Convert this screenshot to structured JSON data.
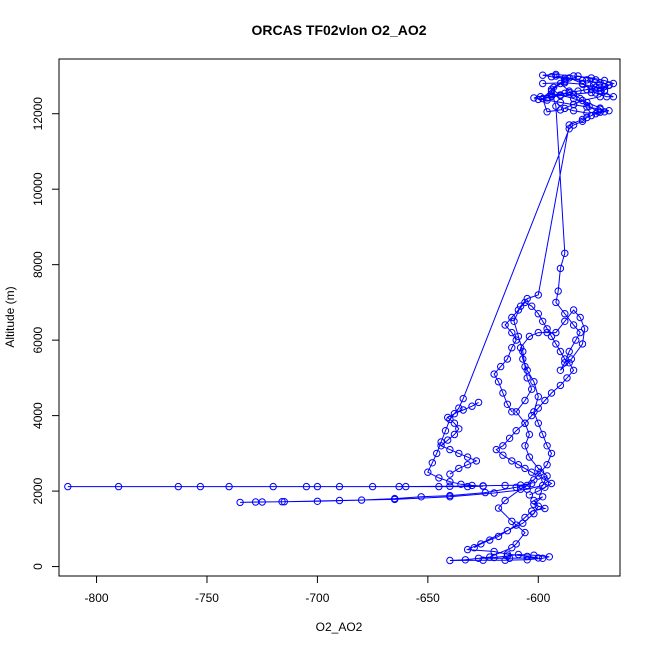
{
  "chart_data": {
    "type": "scatter",
    "title": "ORCAS TF02vlon O2_AO2",
    "xlabel": "O2_AO2",
    "ylabel": "Altitude (m)",
    "xlim": [
      -817,
      -563
    ],
    "ylim": [
      -250,
      13450
    ],
    "xticks": [
      -800,
      -750,
      -700,
      -650,
      -600
    ],
    "yticks": [
      0,
      2000,
      4000,
      6000,
      8000,
      10000,
      12000
    ],
    "grid": false,
    "legend": "none",
    "marker": "open-circle",
    "connected": true,
    "color": "#0000ff",
    "series": [
      {
        "values": [
          [
            -578,
            12900
          ],
          [
            -575,
            12750
          ],
          [
            -570,
            12600
          ],
          [
            -572,
            12450
          ],
          [
            -580,
            12350
          ],
          [
            -584,
            12250
          ],
          [
            -590,
            12100
          ],
          [
            -596,
            12050
          ],
          [
            -598,
            12400
          ],
          [
            -593,
            12700
          ],
          [
            -588,
            12900
          ],
          [
            -592,
            13000
          ],
          [
            -586,
            12950
          ],
          [
            -580,
            12800
          ],
          [
            -574,
            12550
          ],
          [
            -569,
            12450
          ],
          [
            -566,
            12450
          ],
          [
            -572,
            12600
          ],
          [
            -568,
            12750
          ],
          [
            -574,
            12900
          ],
          [
            -582,
            13000
          ],
          [
            -588,
            12850
          ],
          [
            -594,
            12650
          ],
          [
            -590,
            12500
          ],
          [
            -584,
            12400
          ],
          [
            -578,
            12300
          ],
          [
            -572,
            12150
          ],
          [
            -570,
            12050
          ],
          [
            -574,
            12000
          ],
          [
            -578,
            11900
          ],
          [
            -580,
            11800
          ],
          [
            -584,
            11700
          ],
          [
            -586,
            11600
          ],
          [
            -634,
            4450
          ],
          [
            -636,
            4200
          ],
          [
            -640,
            3900
          ],
          [
            -642,
            3600
          ],
          [
            -644,
            3300
          ],
          [
            -646,
            3000
          ],
          [
            -648,
            2750
          ],
          [
            -650,
            2500
          ],
          [
            -645,
            2350
          ],
          [
            -640,
            2250
          ],
          [
            -635,
            2180
          ],
          [
            -630,
            2150
          ],
          [
            -625,
            2130
          ],
          [
            -632,
            2120
          ],
          [
            -645,
            2120
          ],
          [
            -660,
            2120
          ],
          [
            -675,
            2120
          ],
          [
            -690,
            2120
          ],
          [
            -705,
            2120
          ],
          [
            -720,
            2120
          ],
          [
            -740,
            2120
          ],
          [
            -763,
            2120
          ],
          [
            -790,
            2120
          ],
          [
            -813,
            2120
          ],
          [
            -753,
            2120
          ],
          [
            -700,
            2120
          ],
          [
            -663,
            2120
          ],
          [
            -640,
            2130
          ],
          [
            -625,
            2140
          ],
          [
            -615,
            2150
          ],
          [
            -608,
            2160
          ],
          [
            -603,
            2200
          ],
          [
            -610,
            2100
          ],
          [
            -624,
            1960
          ],
          [
            -640,
            1880
          ],
          [
            -653,
            1850
          ],
          [
            -665,
            1800
          ],
          [
            -680,
            1760
          ],
          [
            -700,
            1730
          ],
          [
            -716,
            1720
          ],
          [
            -725,
            1710
          ],
          [
            -735,
            1700
          ],
          [
            -728,
            1710
          ],
          [
            -715,
            1720
          ],
          [
            -690,
            1750
          ],
          [
            -665,
            1780
          ],
          [
            -640,
            1850
          ],
          [
            -620,
            1950
          ],
          [
            -605,
            2050
          ],
          [
            -598,
            2150
          ],
          [
            -596,
            2400
          ],
          [
            -600,
            2600
          ],
          [
            -604,
            2900
          ],
          [
            -606,
            3200
          ],
          [
            -604,
            3500
          ],
          [
            -606,
            3800
          ],
          [
            -610,
            4100
          ],
          [
            -606,
            4400
          ],
          [
            -603,
            4700
          ],
          [
            -605,
            5000
          ],
          [
            -606,
            5300
          ],
          [
            -607,
            5700
          ],
          [
            -609,
            6100
          ],
          [
            -611,
            6500
          ],
          [
            -608,
            6900
          ],
          [
            -605,
            7100
          ],
          [
            -600,
            7200
          ],
          [
            -586,
            11700
          ],
          [
            -580,
            11850
          ],
          [
            -576,
            11950
          ],
          [
            -573,
            12050
          ],
          [
            -577,
            12200
          ],
          [
            -581,
            12400
          ],
          [
            -586,
            12600
          ],
          [
            -590,
            12800
          ],
          [
            -594,
            12600
          ],
          [
            -592,
            12200
          ],
          [
            -588,
            8300
          ],
          [
            -590,
            7900
          ],
          [
            -591,
            7300
          ],
          [
            -592,
            7000
          ],
          [
            -588,
            6700
          ],
          [
            -584,
            6400
          ],
          [
            -581,
            6200
          ],
          [
            -583,
            6000
          ],
          [
            -586,
            5700
          ],
          [
            -588,
            5400
          ],
          [
            -590,
            5200
          ],
          [
            -585,
            5500
          ],
          [
            -580,
            5900
          ],
          [
            -579,
            6300
          ],
          [
            -581,
            6600
          ],
          [
            -584,
            6800
          ],
          [
            -588,
            6500
          ],
          [
            -592,
            6200
          ],
          [
            -596,
            6200
          ],
          [
            -600,
            6200
          ],
          [
            -604,
            6100
          ],
          [
            -608,
            5800
          ],
          [
            -607,
            5500
          ],
          [
            -605,
            5200
          ],
          [
            -602,
            4900
          ],
          [
            -600,
            4500
          ],
          [
            -602,
            4100
          ],
          [
            -600,
            3800
          ],
          [
            -598,
            3500
          ],
          [
            -596,
            3200
          ],
          [
            -594,
            3000
          ],
          [
            -596,
            2700
          ],
          [
            -599,
            2500
          ],
          [
            -602,
            2300
          ],
          [
            -605,
            2150
          ],
          [
            -608,
            2050
          ],
          [
            -615,
            1750
          ],
          [
            -618,
            1550
          ],
          [
            -612,
            1200
          ],
          [
            -606,
            900
          ],
          [
            -610,
            600
          ],
          [
            -612,
            500
          ],
          [
            -622,
            250
          ],
          [
            -633,
            180
          ],
          [
            -640,
            160
          ],
          [
            -625,
            170
          ],
          [
            -615,
            170
          ],
          [
            -605,
            180
          ],
          [
            -598,
            220
          ],
          [
            -595,
            260
          ],
          [
            -602,
            300
          ],
          [
            -609,
            320
          ],
          [
            -614,
            280
          ],
          [
            -620,
            240
          ],
          [
            -627,
            220
          ],
          [
            -613,
            220
          ],
          [
            -600,
            230
          ],
          [
            -605,
            270
          ],
          [
            -614,
            330
          ],
          [
            -620,
            400
          ],
          [
            -632,
            450
          ],
          [
            -607,
            1150
          ],
          [
            -602,
            1400
          ],
          [
            -600,
            1600
          ],
          [
            -602,
            1750
          ],
          [
            -598,
            1850
          ],
          [
            -602,
            1650
          ],
          [
            -597,
            1540
          ],
          [
            -603,
            1470
          ],
          [
            -606,
            1300
          ],
          [
            -610,
            1100
          ],
          [
            -614,
            950
          ],
          [
            -618,
            800
          ],
          [
            -622,
            700
          ],
          [
            -626,
            600
          ],
          [
            -629,
            500
          ]
        ]
      },
      {
        "values": [
          [
            -598,
            12800
          ],
          [
            -588,
            12820
          ],
          [
            -580,
            12780
          ],
          [
            -574,
            12700
          ],
          [
            -570,
            12620
          ],
          [
            -576,
            12560
          ],
          [
            -584,
            12520
          ],
          [
            -590,
            12480
          ],
          [
            -596,
            12420
          ],
          [
            -600,
            12380
          ],
          [
            -594,
            12460
          ],
          [
            -586,
            12560
          ],
          [
            -578,
            12640
          ],
          [
            -572,
            12700
          ],
          [
            -568,
            12760
          ],
          [
            -572,
            12820
          ],
          [
            -580,
            12880
          ],
          [
            -588,
            12940
          ],
          [
            -594,
            12980
          ],
          [
            -598,
            13020
          ],
          [
            -592,
            13040
          ],
          [
            -584,
            13000
          ],
          [
            -576,
            12950
          ],
          [
            -570,
            12880
          ],
          [
            -566,
            12800
          ],
          [
            -570,
            12720
          ],
          [
            -576,
            12660
          ],
          [
            -582,
            12600
          ],
          [
            -588,
            12540
          ],
          [
            -594,
            12500
          ],
          [
            -599,
            12450
          ],
          [
            -602,
            12420
          ],
          [
            -596,
            12360
          ],
          [
            -590,
            12300
          ],
          [
            -584,
            12240
          ],
          [
            -578,
            12180
          ],
          [
            -572,
            12120
          ],
          [
            -568,
            12080
          ],
          [
            -572,
            12040
          ],
          [
            -578,
            12020
          ],
          [
            -584,
            12080
          ],
          [
            -588,
            12140
          ]
        ]
      },
      {
        "values": [
          [
            -612,
            4100
          ],
          [
            -614,
            4300
          ],
          [
            -616,
            4600
          ],
          [
            -618,
            4900
          ],
          [
            -620,
            5100
          ],
          [
            -617,
            5300
          ],
          [
            -614,
            5500
          ],
          [
            -612,
            5800
          ],
          [
            -610,
            6000
          ],
          [
            -612,
            6200
          ],
          [
            -615,
            6400
          ],
          [
            -612,
            6600
          ],
          [
            -609,
            6800
          ],
          [
            -606,
            7000
          ],
          [
            -603,
            6900
          ],
          [
            -600,
            6700
          ],
          [
            -598,
            6500
          ],
          [
            -596,
            6300
          ],
          [
            -594,
            6100
          ],
          [
            -592,
            5900
          ],
          [
            -590,
            5700
          ],
          [
            -588,
            5500
          ],
          [
            -586,
            5400
          ],
          [
            -584,
            5200
          ],
          [
            -587,
            5000
          ],
          [
            -590,
            4800
          ],
          [
            -594,
            4600
          ],
          [
            -597,
            4400
          ],
          [
            -600,
            4200
          ],
          [
            -603,
            4000
          ],
          [
            -606,
            3800
          ],
          [
            -610,
            3600
          ],
          [
            -613,
            3400
          ],
          [
            -616,
            3200
          ],
          [
            -619,
            3100
          ],
          [
            -616,
            2950
          ],
          [
            -612,
            2800
          ],
          [
            -609,
            2700
          ],
          [
            -606,
            2600
          ],
          [
            -603,
            2500
          ],
          [
            -600,
            2400
          ],
          [
            -597,
            2300
          ],
          [
            -594,
            2200
          ],
          [
            -597,
            2100
          ],
          [
            -600,
            2000
          ],
          [
            -604,
            1900
          ]
        ]
      },
      {
        "values": [
          [
            -640,
            2450
          ],
          [
            -636,
            2600
          ],
          [
            -632,
            2700
          ],
          [
            -628,
            2800
          ],
          [
            -632,
            2900
          ],
          [
            -636,
            3000
          ],
          [
            -640,
            3100
          ],
          [
            -644,
            3200
          ],
          [
            -641,
            3350
          ],
          [
            -638,
            3500
          ],
          [
            -636,
            3650
          ],
          [
            -638,
            3800
          ],
          [
            -641,
            3950
          ],
          [
            -638,
            4050
          ],
          [
            -634,
            4150
          ],
          [
            -630,
            4250
          ],
          [
            -627,
            4350
          ]
        ]
      }
    ]
  }
}
